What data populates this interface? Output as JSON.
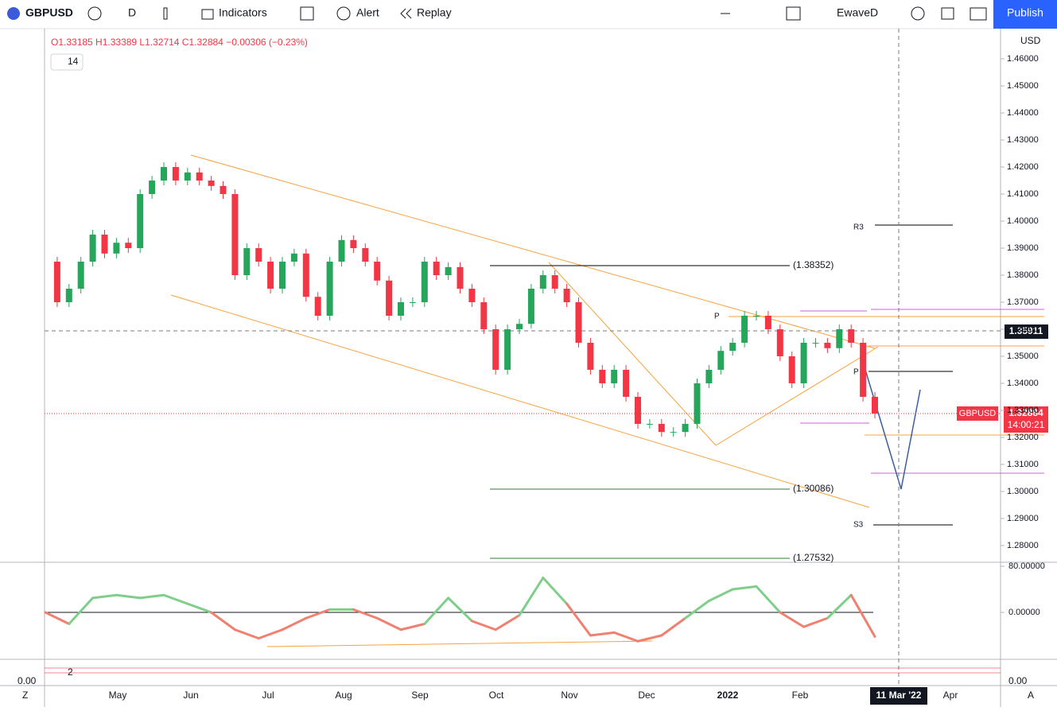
{
  "toolbar": {
    "symbol": "GBPUSD",
    "interval": "D",
    "indicators": "Indicators",
    "alert": "Alert",
    "replay": "Replay",
    "layout": "EwaveD",
    "publish": "Publish"
  },
  "legend": {
    "ohlc": "O1.33185 H1.33389 L1.32714 C1.32884 −0.00306 (−0.23%)",
    "input": "14",
    "input2": "2"
  },
  "price": {
    "currency": "USD",
    "ylim": [
      1.2738,
      1.4709
    ],
    "yticks": [
      {
        "value": 1.28,
        "label": "1.28000"
      },
      {
        "value": 1.29,
        "label": "1.29000"
      },
      {
        "value": 1.3,
        "label": "1.30000"
      },
      {
        "value": 1.31,
        "label": "1.31000"
      },
      {
        "value": 1.32,
        "label": "1.32000"
      },
      {
        "value": 1.33,
        "label": "1.33000"
      },
      {
        "value": 1.34,
        "label": "1.34000"
      },
      {
        "value": 1.35,
        "label": "1.35000"
      },
      {
        "value": 1.36,
        "label": "1.36000"
      },
      {
        "value": 1.37,
        "label": "1.37000"
      },
      {
        "value": 1.38,
        "label": "1.38000"
      },
      {
        "value": 1.39,
        "label": "1.39000"
      },
      {
        "value": 1.4,
        "label": "1.40000"
      },
      {
        "value": 1.41,
        "label": "1.41000"
      },
      {
        "value": 1.42,
        "label": "1.42000"
      },
      {
        "value": 1.43,
        "label": "1.43000"
      },
      {
        "value": 1.44,
        "label": "1.44000"
      },
      {
        "value": 1.45,
        "label": "1.45000"
      },
      {
        "value": 1.46,
        "label": "1.46000"
      }
    ],
    "values": [
      1.385,
      1.37,
      1.375,
      1.385,
      1.395,
      1.388,
      1.392,
      1.39,
      1.41,
      1.415,
      1.42,
      1.415,
      1.418,
      1.415,
      1.413,
      1.41,
      1.38,
      1.39,
      1.385,
      1.375,
      1.385,
      1.388,
      1.372,
      1.365,
      1.385,
      1.393,
      1.39,
      1.385,
      1.378,
      1.365,
      1.37,
      1.37,
      1.385,
      1.38,
      1.383,
      1.375,
      1.37,
      1.36,
      1.345,
      1.36,
      1.362,
      1.375,
      1.38,
      1.375,
      1.37,
      1.355,
      1.345,
      1.34,
      1.345,
      1.335,
      1.325,
      1.325,
      1.322,
      1.322,
      1.325,
      1.34,
      1.345,
      1.352,
      1.355,
      1.365,
      1.365,
      1.36,
      1.35,
      1.34,
      1.355,
      1.355,
      1.353,
      1.36,
      1.355,
      1.335,
      1.3288
    ],
    "last_symbol": "GBPUSD",
    "last_price": "1.32884",
    "countdown": "14:00:21",
    "crosshair_price": "1.35911"
  },
  "time_axis": {
    "labels": [
      "May",
      "Jun",
      "Jul",
      "Aug",
      "Sep",
      "Oct",
      "Nov",
      "Dec",
      "2022",
      "Feb",
      "Apr"
    ],
    "crosshair_date": "11 Mar '22",
    "left": "Z",
    "right": "A"
  },
  "annotations": {
    "fib_top": "(1.38352)",
    "fib_mid": "(1.30086)",
    "fib_low": "(1.27532)",
    "pivot": "P",
    "pivot2": "P",
    "r3": "R3",
    "s3": "S3"
  },
  "oscillator": {
    "ylim": [
      -80,
      85.5
    ],
    "yticks": [
      {
        "value": 80,
        "label": "80.00000"
      },
      {
        "value": 0,
        "label": "0.00000"
      }
    ],
    "values": [
      0,
      -20,
      25,
      30,
      25,
      30,
      15,
      0,
      -30,
      -45,
      -30,
      -10,
      5,
      5,
      -10,
      -30,
      -20,
      25,
      -15,
      -30,
      -5,
      60,
      15,
      -40,
      -35,
      -50,
      -40,
      -10,
      20,
      40,
      45,
      0,
      -25,
      -10,
      30,
      -42
    ],
    "lower_label": "0.00",
    "lower_label_left": "0.00"
  }
}
